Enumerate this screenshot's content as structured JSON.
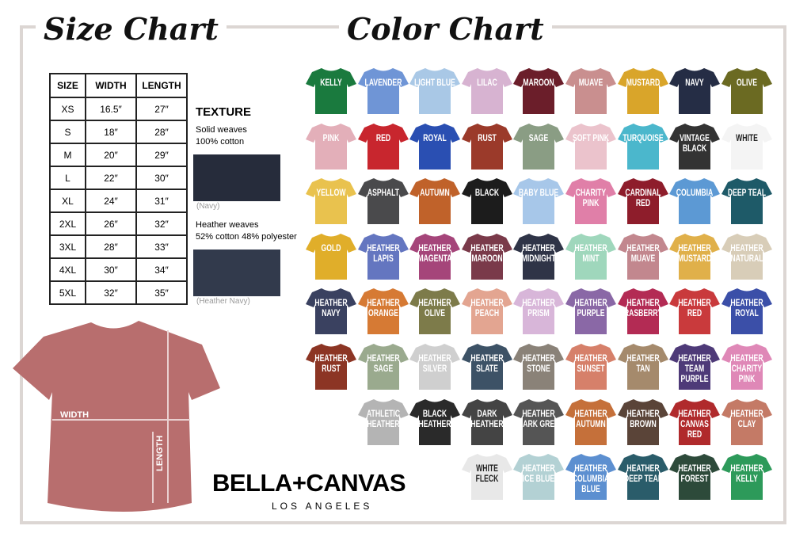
{
  "size_chart": {
    "title": "Size Chart",
    "header": [
      "SIZE",
      "WIDTH",
      "LENGTH"
    ],
    "rows": [
      [
        "XS",
        "16.5″",
        "27″"
      ],
      [
        "S",
        "18″",
        "28″"
      ],
      [
        "M",
        "20″",
        "29″"
      ],
      [
        "L",
        "22″",
        "30″"
      ],
      [
        "XL",
        "24″",
        "31″"
      ],
      [
        "2XL",
        "26″",
        "32″"
      ],
      [
        "3XL",
        "28″",
        "33″"
      ],
      [
        "4XL",
        "30″",
        "34″"
      ],
      [
        "5XL",
        "32″",
        "35″"
      ]
    ]
  },
  "texture": {
    "title": "TEXTURE",
    "items": [
      {
        "lines": [
          "Solid weaves",
          "100% cotton"
        ],
        "caption": "(Navy)",
        "color": "#262c3b"
      },
      {
        "lines": [
          "Heather weaves",
          "52% cotton 48% polyester"
        ],
        "caption": "(Heather Navy)",
        "color": "#323a4c"
      }
    ]
  },
  "diagram": {
    "width_label": "WIDTH",
    "length_label": "LENGTH"
  },
  "brand": {
    "name": "BELLA+CANVAS",
    "city": "LOS ANGELES"
  },
  "color_chart": {
    "title": "Color Chart",
    "rows": [
      [
        {
          "name": "KELLY",
          "color": "#1a7a3e"
        },
        {
          "name": "LAVENDER",
          "color": "#6f95d6"
        },
        {
          "name": "LIGHT BLUE",
          "color": "#a9c8e6"
        },
        {
          "name": "LILAC",
          "color": "#d7b3d1"
        },
        {
          "name": "MAROON",
          "color": "#6b1e2a"
        },
        {
          "name": "MUAVE",
          "color": "#c98f8f"
        },
        {
          "name": "MUSTARD",
          "color": "#d9a52a"
        },
        {
          "name": "NAVY",
          "color": "#252d45"
        },
        {
          "name": "OLIVE",
          "color": "#6b6a22"
        }
      ],
      [
        {
          "name": "PINK",
          "color": "#e3afb9"
        },
        {
          "name": "RED",
          "color": "#c8262e"
        },
        {
          "name": "ROYAL",
          "color": "#2a4fb2"
        },
        {
          "name": "RUST",
          "color": "#9b3a2a"
        },
        {
          "name": "SAGE",
          "color": "#8a9d84"
        },
        {
          "name": "SOFT PINK",
          "color": "#ebc3cc"
        },
        {
          "name": "TURQUOISE",
          "color": "#4bb7cc"
        },
        {
          "name": "VINTAGE BLACK",
          "color": "#333333"
        },
        {
          "name": "WHITE",
          "color": "#f4f4f4"
        }
      ],
      [
        {
          "name": "YELLOW",
          "color": "#e9c24e"
        },
        {
          "name": "ASPHALT",
          "color": "#4a4a4c"
        },
        {
          "name": "AUTUMN",
          "color": "#c0622a"
        },
        {
          "name": "BLACK",
          "color": "#1c1c1c"
        },
        {
          "name": "BABY BLUE",
          "color": "#a7c7e9"
        },
        {
          "name": "CHARITY PINK",
          "color": "#e07fa8"
        },
        {
          "name": "CARDINAL RED",
          "color": "#8e1d2b"
        },
        {
          "name": "COLUMBIA",
          "color": "#5c99d4"
        },
        {
          "name": "DEEP TEAL",
          "color": "#1e5a68"
        }
      ],
      [
        {
          "name": "GOLD",
          "color": "#e0ae2a"
        },
        {
          "name": "HEATHER LAPIS",
          "color": "#6476c0"
        },
        {
          "name": "HEATHER MAGENTA",
          "color": "#a5457a"
        },
        {
          "name": "HEATHER MAROON",
          "color": "#7a3a4a"
        },
        {
          "name": "HEATHER MIDNIGHT",
          "color": "#2f3447"
        },
        {
          "name": "HEATHER MINT",
          "color": "#9fd7bc"
        },
        {
          "name": "HEATHER MUAVE",
          "color": "#c2878e"
        },
        {
          "name": "HEATHER MUSTARD",
          "color": "#e0b04a"
        },
        {
          "name": "HEATHER NATURAL",
          "color": "#d8cdb8"
        }
      ],
      [
        {
          "name": "HEATHER NAVY",
          "color": "#3a4160"
        },
        {
          "name": "HEATHER ORANGE",
          "color": "#d67a34"
        },
        {
          "name": "HEATHER OLIVE",
          "color": "#7d7b4a"
        },
        {
          "name": "HEATHER PEACH",
          "color": "#e3a591"
        },
        {
          "name": "HEATHER PRISM",
          "color": "#d8b6d9"
        },
        {
          "name": "HEATHER PURPLE",
          "color": "#8a68a6"
        },
        {
          "name": "HEATHER RASBERRY",
          "color": "#b32b54"
        },
        {
          "name": "HEATHER RED",
          "color": "#c93a3c"
        },
        {
          "name": "HEATHER ROYAL",
          "color": "#3b4fa8"
        }
      ],
      [
        {
          "name": "HEATHER RUST",
          "color": "#8c3524"
        },
        {
          "name": "HEATHER SAGE",
          "color": "#9aaa8e"
        },
        {
          "name": "HEATHER SILVER",
          "color": "#cfcfcf"
        },
        {
          "name": "HEATHER SLATE",
          "color": "#3d5266"
        },
        {
          "name": "HEATHER STONE",
          "color": "#8a8278"
        },
        {
          "name": "HEATHER SUNSET",
          "color": "#d6806a"
        },
        {
          "name": "HEATHER TAN",
          "color": "#a58a6c"
        },
        {
          "name": "HEATHER TEAM PURPLE",
          "color": "#4e3a78"
        },
        {
          "name": "HEATHER CHARITY PINK",
          "color": "#df88b7"
        }
      ],
      [
        {
          "name": "ATHLETIC HEATHER",
          "color": "#b4b4b4"
        },
        {
          "name": "BLACK HEATHER",
          "color": "#2a2a2a"
        },
        {
          "name": "DARK HEATHER",
          "color": "#444444"
        },
        {
          "name": "HEATHER DARK GREY",
          "color": "#555555"
        },
        {
          "name": "HEATHER AUTUMN",
          "color": "#c5703a"
        },
        {
          "name": "HEATHER BROWN",
          "color": "#5a4438"
        },
        {
          "name": "HEATHER CANVAS RED",
          "color": "#b02a2c"
        },
        {
          "name": "HEATHER CLAY",
          "color": "#c47a66"
        }
      ],
      [
        {
          "name": "WHITE FLECK",
          "color": "#e8e8e8"
        },
        {
          "name": "HEATHER ICE BLUE",
          "color": "#b3d1d4"
        },
        {
          "name": "HEATHER COLUMBIA BLUE",
          "color": "#5c8fd0"
        },
        {
          "name": "HEATHER DEEP TEAL",
          "color": "#2a5c6a"
        },
        {
          "name": "HEATHER FOREST",
          "color": "#2d4a3a"
        },
        {
          "name": "HEATHER KELLY",
          "color": "#2d9a5a"
        }
      ]
    ]
  }
}
